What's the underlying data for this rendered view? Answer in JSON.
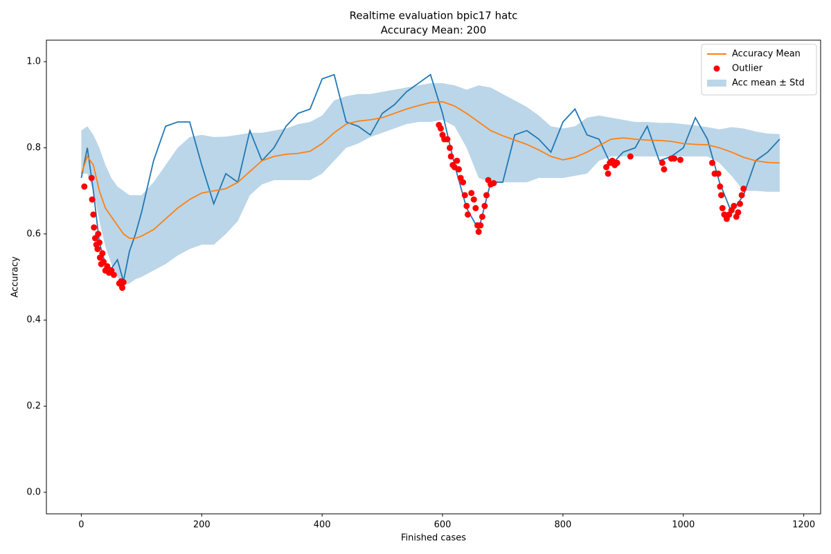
{
  "chart_data": {
    "type": "line",
    "title": "Realtime evaluation bpic17 hatc",
    "subtitle": "Accuracy Mean: 200",
    "xlabel": "Finished cases",
    "ylabel": "Accuracy",
    "xlim": [
      -58,
      1228
    ],
    "ylim": [
      -0.05,
      1.05
    ],
    "xticks": [
      0,
      200,
      400,
      600,
      800,
      1000,
      1200
    ],
    "yticks": [
      {
        "value": 0,
        "label": "0.0"
      },
      0.2,
      0.4,
      0.6,
      0.8,
      {
        "value": 1,
        "label": "1.0"
      }
    ],
    "grid": false,
    "legend": "upper right",
    "x": [
      0,
      10,
      20,
      30,
      40,
      50,
      60,
      70,
      80,
      90,
      100,
      120,
      140,
      160,
      180,
      200,
      220,
      240,
      260,
      280,
      300,
      320,
      340,
      360,
      380,
      400,
      420,
      440,
      460,
      480,
      500,
      520,
      540,
      560,
      580,
      600,
      620,
      640,
      660,
      680,
      700,
      720,
      740,
      760,
      780,
      800,
      820,
      840,
      860,
      880,
      900,
      920,
      940,
      960,
      980,
      1000,
      1020,
      1040,
      1060,
      1080,
      1100,
      1120,
      1140,
      1160
    ],
    "series": [
      {
        "color": "#1f77b4",
        "values": [
          0.73,
          0.8,
          0.7,
          0.58,
          0.53,
          0.52,
          0.54,
          0.49,
          0.56,
          0.6,
          0.65,
          0.77,
          0.85,
          0.86,
          0.86,
          0.76,
          0.67,
          0.74,
          0.72,
          0.84,
          0.77,
          0.8,
          0.85,
          0.88,
          0.89,
          0.96,
          0.97,
          0.86,
          0.85,
          0.83,
          0.88,
          0.9,
          0.93,
          0.95,
          0.97,
          0.88,
          0.76,
          0.66,
          0.61,
          0.72,
          0.72,
          0.83,
          0.84,
          0.82,
          0.79,
          0.86,
          0.89,
          0.83,
          0.82,
          0.76,
          0.79,
          0.8,
          0.85,
          0.77,
          0.78,
          0.8,
          0.87,
          0.82,
          0.72,
          0.65,
          0.69,
          0.77,
          0.79,
          0.82
        ]
      },
      {
        "name": "Accuracy Mean",
        "color": "#ff7f0e",
        "values": [
          0.74,
          0.78,
          0.76,
          0.7,
          0.66,
          0.64,
          0.62,
          0.6,
          0.59,
          0.59,
          0.595,
          0.61,
          0.635,
          0.66,
          0.68,
          0.695,
          0.7,
          0.705,
          0.72,
          0.745,
          0.77,
          0.78,
          0.785,
          0.787,
          0.792,
          0.81,
          0.835,
          0.855,
          0.862,
          0.865,
          0.87,
          0.88,
          0.89,
          0.898,
          0.905,
          0.907,
          0.897,
          0.88,
          0.86,
          0.84,
          0.828,
          0.818,
          0.808,
          0.795,
          0.78,
          0.772,
          0.778,
          0.79,
          0.805,
          0.82,
          0.823,
          0.82,
          0.818,
          0.817,
          0.815,
          0.81,
          0.808,
          0.807,
          0.8,
          0.79,
          0.778,
          0.77,
          0.766,
          0.765
        ]
      }
    ],
    "outliers": {
      "name": "Outlier",
      "color": "#ff0000",
      "x": [
        5,
        17,
        18,
        20,
        21,
        23,
        25,
        27,
        28,
        30,
        31,
        33,
        35,
        37,
        40,
        43,
        46,
        50,
        54,
        63,
        66,
        68,
        70,
        594,
        597,
        600,
        603,
        608,
        612,
        614,
        617,
        620,
        624,
        627,
        630,
        634,
        637,
        640,
        642,
        648,
        652,
        655,
        658,
        660,
        663,
        666,
        670,
        673,
        676,
        680,
        685,
        872,
        875,
        878,
        882,
        886,
        890,
        912,
        965,
        968,
        980,
        985,
        995,
        1048,
        1052,
        1058,
        1061,
        1063,
        1065,
        1068,
        1072,
        1076,
        1080,
        1084,
        1088,
        1091,
        1094,
        1097,
        1100
      ],
      "values": [
        0.71,
        0.73,
        0.68,
        0.645,
        0.615,
        0.59,
        0.575,
        0.565,
        0.6,
        0.58,
        0.545,
        0.53,
        0.555,
        0.535,
        0.515,
        0.525,
        0.51,
        0.515,
        0.505,
        0.485,
        0.49,
        0.475,
        0.488,
        0.853,
        0.845,
        0.83,
        0.82,
        0.82,
        0.8,
        0.78,
        0.76,
        0.755,
        0.77,
        0.75,
        0.73,
        0.72,
        0.69,
        0.665,
        0.645,
        0.695,
        0.68,
        0.66,
        0.62,
        0.605,
        0.62,
        0.64,
        0.665,
        0.69,
        0.725,
        0.715,
        0.718,
        0.755,
        0.74,
        0.765,
        0.77,
        0.76,
        0.765,
        0.78,
        0.765,
        0.75,
        0.775,
        0.775,
        0.772,
        0.765,
        0.74,
        0.74,
        0.71,
        0.69,
        0.66,
        0.645,
        0.635,
        0.645,
        0.655,
        0.665,
        0.64,
        0.65,
        0.67,
        0.69,
        0.705
      ]
    },
    "band": {
      "name": "Acc mean ± Std",
      "color": "#1f77b4",
      "opacity": 0.3,
      "upper": [
        0.84,
        0.85,
        0.83,
        0.8,
        0.76,
        0.73,
        0.71,
        0.7,
        0.69,
        0.69,
        0.69,
        0.72,
        0.76,
        0.8,
        0.825,
        0.83,
        0.825,
        0.826,
        0.83,
        0.835,
        0.835,
        0.84,
        0.845,
        0.855,
        0.86,
        0.875,
        0.91,
        0.92,
        0.925,
        0.925,
        0.93,
        0.935,
        0.94,
        0.945,
        0.95,
        0.95,
        0.945,
        0.935,
        0.945,
        0.94,
        0.925,
        0.91,
        0.895,
        0.875,
        0.85,
        0.845,
        0.85,
        0.87,
        0.875,
        0.87,
        0.865,
        0.86,
        0.86,
        0.858,
        0.858,
        0.855,
        0.852,
        0.848,
        0.843,
        0.848,
        0.845,
        0.838,
        0.833,
        0.832
      ],
      "lower": [
        0.74,
        0.74,
        0.7,
        0.63,
        0.57,
        0.53,
        0.5,
        0.48,
        0.485,
        0.495,
        0.5,
        0.515,
        0.53,
        0.55,
        0.565,
        0.575,
        0.575,
        0.6,
        0.63,
        0.69,
        0.715,
        0.725,
        0.725,
        0.725,
        0.725,
        0.74,
        0.77,
        0.8,
        0.81,
        0.825,
        0.835,
        0.845,
        0.855,
        0.86,
        0.86,
        0.865,
        0.85,
        0.8,
        0.73,
        0.72,
        0.72,
        0.72,
        0.72,
        0.73,
        0.73,
        0.73,
        0.735,
        0.74,
        0.77,
        0.78,
        0.78,
        0.78,
        0.78,
        0.78,
        0.78,
        0.78,
        0.78,
        0.78,
        0.765,
        0.735,
        0.7,
        0.7,
        0.698,
        0.698
      ]
    }
  }
}
